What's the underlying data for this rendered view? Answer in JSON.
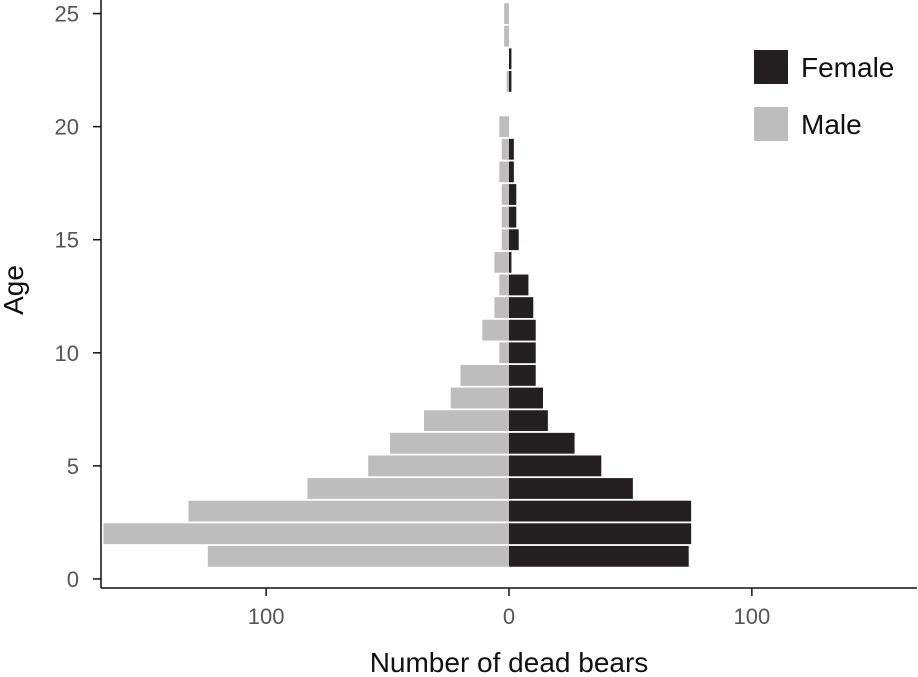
{
  "chart_data": {
    "type": "bar",
    "orientation": "horizontal-pyramid",
    "title": "",
    "xlabel": "Number of dead bears",
    "ylabel": "Age",
    "xlim": [
      -168,
      168
    ],
    "ylim": [
      -0.4,
      25.6
    ],
    "x_ticks": [
      -100,
      0,
      100
    ],
    "x_tick_labels": [
      "100",
      "0",
      "100"
    ],
    "y_ticks": [
      0,
      5,
      10,
      15,
      20,
      25
    ],
    "y_tick_labels": [
      "0",
      "5",
      "10",
      "15",
      "20",
      "25"
    ],
    "grid": false,
    "legend_position": "top-right",
    "categories": [
      1,
      2,
      3,
      4,
      5,
      6,
      7,
      8,
      9,
      10,
      11,
      12,
      13,
      14,
      15,
      16,
      17,
      18,
      19,
      20,
      21,
      22,
      23,
      24,
      25
    ],
    "series": [
      {
        "name": "Female",
        "color": "#231f20",
        "side": "right",
        "values": [
          74,
          75,
          75,
          51,
          38,
          27,
          16,
          14,
          11,
          11,
          11,
          10,
          8,
          1,
          4,
          3,
          3,
          2,
          2,
          0,
          0,
          1,
          1,
          0,
          0
        ]
      },
      {
        "name": "Male",
        "color": "#bdbdbd",
        "side": "left",
        "values": [
          124,
          167,
          132,
          83,
          58,
          49,
          35,
          24,
          20,
          4,
          11,
          6,
          4,
          6,
          3,
          3,
          3,
          4,
          3,
          4,
          0,
          1,
          0,
          2,
          2
        ]
      }
    ]
  }
}
